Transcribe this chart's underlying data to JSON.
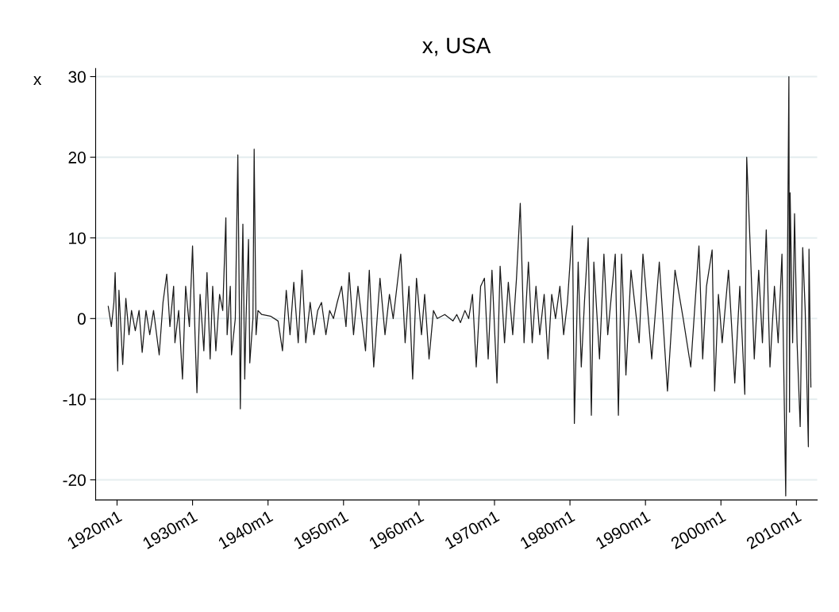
{
  "chart_data": {
    "type": "line",
    "title": "x, USA",
    "ylabel": "x",
    "series": [
      {
        "color": "#1a1a1a",
        "x": [
          "1918-11",
          "1919-04",
          "1919-08",
          "1919-10",
          "1920-02",
          "1920-04",
          "1920-07",
          "1920-10",
          "1921-03",
          "1921-08",
          "1921-12",
          "1922-06",
          "1922-12",
          "1923-05",
          "1923-11",
          "1924-05",
          "1924-11",
          "1925-08",
          "1926-02",
          "1926-08",
          "1927-01",
          "1927-07",
          "1927-09",
          "1928-03",
          "1928-09",
          "1929-02",
          "1929-08",
          "1930-01",
          "1930-05",
          "1930-08",
          "1931-01",
          "1931-07",
          "1931-12",
          "1932-05",
          "1932-09",
          "1933-02",
          "1933-08",
          "1934-01",
          "1934-06",
          "1934-08",
          "1935-01",
          "1935-03",
          "1935-09",
          "1936-01",
          "1936-05",
          "1936-07",
          "1936-09",
          "1936-12",
          "1937-02",
          "1937-06",
          "1937-08",
          "1938-01",
          "1938-03",
          "1938-06",
          "1938-09",
          "1939-03",
          "1940-05",
          "1941-05",
          "1941-12",
          "1942-06",
          "1942-12",
          "1943-06",
          "1944-01",
          "1944-07",
          "1945-01",
          "1945-08",
          "1946-02",
          "1946-08",
          "1947-02",
          "1947-09",
          "1948-03",
          "1948-09",
          "1949-03",
          "1949-10",
          "1950-05",
          "1950-10",
          "1951-05",
          "1951-12",
          "1952-12",
          "1953-06",
          "1954-01",
          "1954-11",
          "1955-07",
          "1956-02",
          "1956-08",
          "1957-08",
          "1958-03",
          "1958-09",
          "1959-03",
          "1959-09",
          "1960-05",
          "1960-10",
          "1961-05",
          "1961-12",
          "1962-06",
          "1963-06",
          "1964-07",
          "1965-01",
          "1965-07",
          "1966-02",
          "1966-08",
          "1967-02",
          "1967-08",
          "1968-03",
          "1968-09",
          "1969-03",
          "1969-09",
          "1970-05",
          "1970-10",
          "1971-05",
          "1971-11",
          "1972-06",
          "1972-12",
          "1973-06",
          "1973-12",
          "1974-07",
          "1975-01",
          "1975-07",
          "1976-01",
          "1976-08",
          "1977-02",
          "1977-08",
          "1978-02",
          "1978-09",
          "1979-03",
          "1979-09",
          "1980-05",
          "1980-08",
          "1981-02",
          "1981-07",
          "1981-12",
          "1982-06",
          "1982-11",
          "1983-03",
          "1983-12",
          "1984-07",
          "1985-01",
          "1986-01",
          "1986-06",
          "1986-11",
          "1987-06",
          "1988-02",
          "1989-03",
          "1989-09",
          "1990-11",
          "1991-11",
          "1992-12",
          "1993-12",
          "1995-01",
          "1996-01",
          "1997-02",
          "1997-08",
          "1998-02",
          "1998-11",
          "1999-03",
          "1999-09",
          "2000-03",
          "2001-01",
          "2001-11",
          "2002-07",
          "2003-03",
          "2003-06",
          "2003-12",
          "2004-06",
          "2005-01",
          "2005-07",
          "2006-01",
          "2006-07",
          "2007-02",
          "2007-08",
          "2008-02",
          "2008-08",
          "2009-01",
          "2009-02",
          "2009-03",
          "2009-07",
          "2009-10",
          "2010-02",
          "2010-07",
          "2010-11",
          "2011-03",
          "2011-08",
          "2011-09",
          "2011-12"
        ],
        "values": [
          1.5,
          -1,
          2,
          5.7,
          -6.5,
          3.5,
          -1,
          -5.7,
          2.5,
          -2,
          1,
          -1.5,
          1,
          -4.2,
          1,
          -2,
          1,
          -4.5,
          2,
          5.5,
          -1,
          4,
          -3,
          1,
          -7.5,
          4,
          -1,
          9,
          -2,
          -9.2,
          3,
          -4,
          5.7,
          -5,
          4,
          -4,
          3,
          1,
          12.5,
          -2,
          4,
          -4.5,
          0,
          20.3,
          -11.2,
          2,
          11.7,
          -7.5,
          0,
          9.8,
          -5.5,
          0,
          21,
          -2,
          1,
          0.5,
          0.3,
          -0.3,
          -4,
          3.5,
          -2,
          4.5,
          -3,
          6,
          -3,
          2,
          -2,
          1,
          2,
          -2,
          1,
          0,
          2,
          4,
          -1,
          5.7,
          -2,
          4,
          -4,
          6,
          -6,
          5,
          -2,
          3,
          0,
          8,
          -3,
          4,
          -7.5,
          5,
          -2,
          3,
          -5,
          1,
          0,
          0.5,
          -0.3,
          0.5,
          -0.5,
          1,
          0,
          3,
          -6,
          4,
          5,
          -5,
          6,
          -8,
          6.5,
          -3,
          4.5,
          -2,
          5,
          14.3,
          -3,
          7,
          -3,
          4,
          -2,
          3,
          -5,
          3,
          0,
          4,
          -2,
          2,
          11.5,
          -13,
          7,
          -6,
          2,
          10,
          -12,
          7,
          -5,
          8,
          -2,
          8,
          -12,
          8,
          -7,
          6,
          -3,
          8,
          -5,
          7,
          -9,
          6,
          0,
          -6,
          9,
          -5,
          4,
          8.5,
          -9,
          3,
          -3,
          6,
          -8,
          4,
          -9.4,
          20,
          8,
          -5,
          6,
          -3,
          11,
          -6,
          4,
          -3,
          8,
          -22,
          30,
          -11.6,
          15.6,
          -3,
          13,
          -3,
          -13.4,
          8.8,
          1,
          -15.9,
          8.6,
          -8.5
        ]
      }
    ],
    "xlim": [
      "1917-03",
      "2012-10"
    ],
    "xticks": [
      {
        "value": "1920-01",
        "label": "1920m1"
      },
      {
        "value": "1930-01",
        "label": "1930m1"
      },
      {
        "value": "1940-01",
        "label": "1940m1"
      },
      {
        "value": "1950-01",
        "label": "1950m1"
      },
      {
        "value": "1960-01",
        "label": "1960m1"
      },
      {
        "value": "1970-01",
        "label": "1970m1"
      },
      {
        "value": "1980-01",
        "label": "1980m1"
      },
      {
        "value": "1990-01",
        "label": "1990m1"
      },
      {
        "value": "2000-01",
        "label": "2000m1"
      },
      {
        "value": "2010-01",
        "label": "2010m1"
      }
    ],
    "ylim": [
      -22.5,
      31
    ],
    "yticks": [
      -20,
      -10,
      0,
      10,
      20,
      30
    ],
    "grid": "y"
  }
}
